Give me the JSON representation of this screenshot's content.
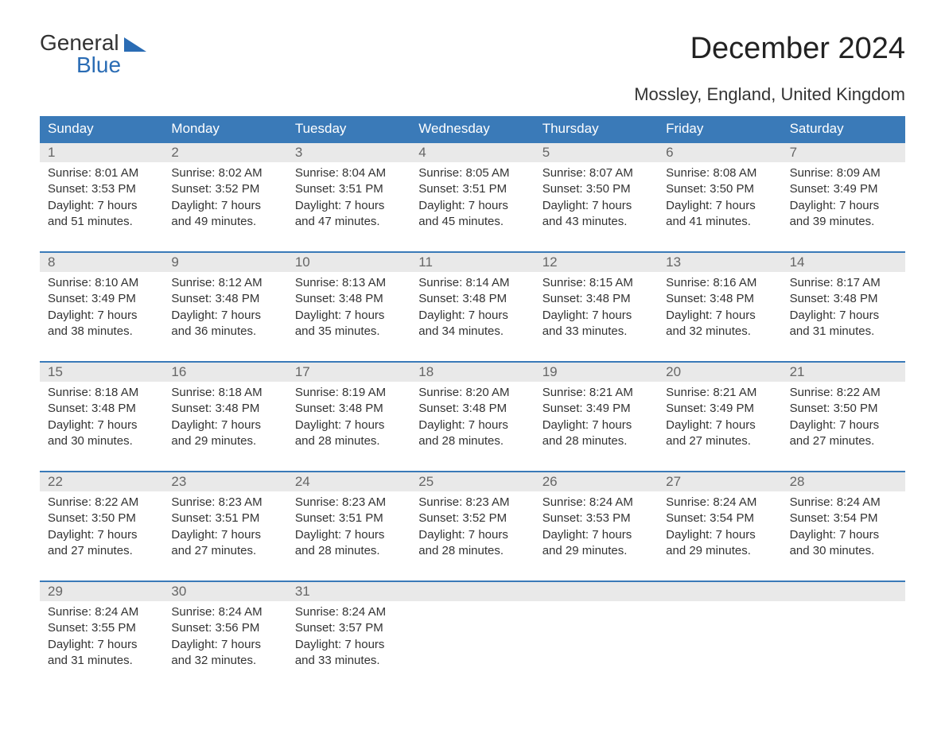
{
  "brand": {
    "word1": "General",
    "word2": "Blue"
  },
  "title": "December 2024",
  "location": "Mossley, England, United Kingdom",
  "colors": {
    "headerBg": "#3a7ab8",
    "headerText": "#ffffff",
    "dayNumBg": "#e9e9e9",
    "dayNumText": "#666666",
    "bodyText": "#333333",
    "weekBorder": "#3a7ab8",
    "brandBlue": "#2a6cb4",
    "pageBg": "#ffffff"
  },
  "daysOfWeek": [
    "Sunday",
    "Monday",
    "Tuesday",
    "Wednesday",
    "Thursday",
    "Friday",
    "Saturday"
  ],
  "weeks": [
    [
      {
        "n": "1",
        "sunrise": "Sunrise: 8:01 AM",
        "sunset": "Sunset: 3:53 PM",
        "daylight": "Daylight: 7 hours and 51 minutes."
      },
      {
        "n": "2",
        "sunrise": "Sunrise: 8:02 AM",
        "sunset": "Sunset: 3:52 PM",
        "daylight": "Daylight: 7 hours and 49 minutes."
      },
      {
        "n": "3",
        "sunrise": "Sunrise: 8:04 AM",
        "sunset": "Sunset: 3:51 PM",
        "daylight": "Daylight: 7 hours and 47 minutes."
      },
      {
        "n": "4",
        "sunrise": "Sunrise: 8:05 AM",
        "sunset": "Sunset: 3:51 PM",
        "daylight": "Daylight: 7 hours and 45 minutes."
      },
      {
        "n": "5",
        "sunrise": "Sunrise: 8:07 AM",
        "sunset": "Sunset: 3:50 PM",
        "daylight": "Daylight: 7 hours and 43 minutes."
      },
      {
        "n": "6",
        "sunrise": "Sunrise: 8:08 AM",
        "sunset": "Sunset: 3:50 PM",
        "daylight": "Daylight: 7 hours and 41 minutes."
      },
      {
        "n": "7",
        "sunrise": "Sunrise: 8:09 AM",
        "sunset": "Sunset: 3:49 PM",
        "daylight": "Daylight: 7 hours and 39 minutes."
      }
    ],
    [
      {
        "n": "8",
        "sunrise": "Sunrise: 8:10 AM",
        "sunset": "Sunset: 3:49 PM",
        "daylight": "Daylight: 7 hours and 38 minutes."
      },
      {
        "n": "9",
        "sunrise": "Sunrise: 8:12 AM",
        "sunset": "Sunset: 3:48 PM",
        "daylight": "Daylight: 7 hours and 36 minutes."
      },
      {
        "n": "10",
        "sunrise": "Sunrise: 8:13 AM",
        "sunset": "Sunset: 3:48 PM",
        "daylight": "Daylight: 7 hours and 35 minutes."
      },
      {
        "n": "11",
        "sunrise": "Sunrise: 8:14 AM",
        "sunset": "Sunset: 3:48 PM",
        "daylight": "Daylight: 7 hours and 34 minutes."
      },
      {
        "n": "12",
        "sunrise": "Sunrise: 8:15 AM",
        "sunset": "Sunset: 3:48 PM",
        "daylight": "Daylight: 7 hours and 33 minutes."
      },
      {
        "n": "13",
        "sunrise": "Sunrise: 8:16 AM",
        "sunset": "Sunset: 3:48 PM",
        "daylight": "Daylight: 7 hours and 32 minutes."
      },
      {
        "n": "14",
        "sunrise": "Sunrise: 8:17 AM",
        "sunset": "Sunset: 3:48 PM",
        "daylight": "Daylight: 7 hours and 31 minutes."
      }
    ],
    [
      {
        "n": "15",
        "sunrise": "Sunrise: 8:18 AM",
        "sunset": "Sunset: 3:48 PM",
        "daylight": "Daylight: 7 hours and 30 minutes."
      },
      {
        "n": "16",
        "sunrise": "Sunrise: 8:18 AM",
        "sunset": "Sunset: 3:48 PM",
        "daylight": "Daylight: 7 hours and 29 minutes."
      },
      {
        "n": "17",
        "sunrise": "Sunrise: 8:19 AM",
        "sunset": "Sunset: 3:48 PM",
        "daylight": "Daylight: 7 hours and 28 minutes."
      },
      {
        "n": "18",
        "sunrise": "Sunrise: 8:20 AM",
        "sunset": "Sunset: 3:48 PM",
        "daylight": "Daylight: 7 hours and 28 minutes."
      },
      {
        "n": "19",
        "sunrise": "Sunrise: 8:21 AM",
        "sunset": "Sunset: 3:49 PM",
        "daylight": "Daylight: 7 hours and 28 minutes."
      },
      {
        "n": "20",
        "sunrise": "Sunrise: 8:21 AM",
        "sunset": "Sunset: 3:49 PM",
        "daylight": "Daylight: 7 hours and 27 minutes."
      },
      {
        "n": "21",
        "sunrise": "Sunrise: 8:22 AM",
        "sunset": "Sunset: 3:50 PM",
        "daylight": "Daylight: 7 hours and 27 minutes."
      }
    ],
    [
      {
        "n": "22",
        "sunrise": "Sunrise: 8:22 AM",
        "sunset": "Sunset: 3:50 PM",
        "daylight": "Daylight: 7 hours and 27 minutes."
      },
      {
        "n": "23",
        "sunrise": "Sunrise: 8:23 AM",
        "sunset": "Sunset: 3:51 PM",
        "daylight": "Daylight: 7 hours and 27 minutes."
      },
      {
        "n": "24",
        "sunrise": "Sunrise: 8:23 AM",
        "sunset": "Sunset: 3:51 PM",
        "daylight": "Daylight: 7 hours and 28 minutes."
      },
      {
        "n": "25",
        "sunrise": "Sunrise: 8:23 AM",
        "sunset": "Sunset: 3:52 PM",
        "daylight": "Daylight: 7 hours and 28 minutes."
      },
      {
        "n": "26",
        "sunrise": "Sunrise: 8:24 AM",
        "sunset": "Sunset: 3:53 PM",
        "daylight": "Daylight: 7 hours and 29 minutes."
      },
      {
        "n": "27",
        "sunrise": "Sunrise: 8:24 AM",
        "sunset": "Sunset: 3:54 PM",
        "daylight": "Daylight: 7 hours and 29 minutes."
      },
      {
        "n": "28",
        "sunrise": "Sunrise: 8:24 AM",
        "sunset": "Sunset: 3:54 PM",
        "daylight": "Daylight: 7 hours and 30 minutes."
      }
    ],
    [
      {
        "n": "29",
        "sunrise": "Sunrise: 8:24 AM",
        "sunset": "Sunset: 3:55 PM",
        "daylight": "Daylight: 7 hours and 31 minutes."
      },
      {
        "n": "30",
        "sunrise": "Sunrise: 8:24 AM",
        "sunset": "Sunset: 3:56 PM",
        "daylight": "Daylight: 7 hours and 32 minutes."
      },
      {
        "n": "31",
        "sunrise": "Sunrise: 8:24 AM",
        "sunset": "Sunset: 3:57 PM",
        "daylight": "Daylight: 7 hours and 33 minutes."
      },
      null,
      null,
      null,
      null
    ]
  ]
}
